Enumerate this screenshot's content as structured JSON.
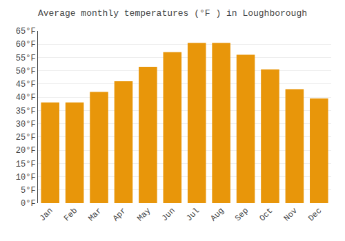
{
  "chart_data": {
    "type": "bar",
    "title": "Average monthly temperatures (°F ) in Loughborough",
    "categories": [
      "Jan",
      "Feb",
      "Mar",
      "Apr",
      "May",
      "Jun",
      "Jul",
      "Aug",
      "Sep",
      "Oct",
      "Nov",
      "Dec"
    ],
    "values": [
      38,
      38,
      42,
      46,
      51.5,
      57,
      60.5,
      60.5,
      56,
      50.5,
      43,
      39.5
    ],
    "color": "#E8960A",
    "ylim": [
      0,
      65
    ],
    "yticks": [
      {
        "value": 0,
        "label": "0°F"
      },
      {
        "value": 5,
        "label": "5°F"
      },
      {
        "value": 10,
        "label": "10°F"
      },
      {
        "value": 15,
        "label": "15°F"
      },
      {
        "value": 20,
        "label": "20°F"
      },
      {
        "value": 25,
        "label": "25°F"
      },
      {
        "value": 30,
        "label": "30°F"
      },
      {
        "value": 35,
        "label": "35°F"
      },
      {
        "value": 40,
        "label": "40°F"
      },
      {
        "value": 45,
        "label": "45°F"
      },
      {
        "value": 50,
        "label": "50°F"
      },
      {
        "value": 55,
        "label": "55°F"
      },
      {
        "value": 60,
        "label": "60°F"
      },
      {
        "value": 65,
        "label": "65°F"
      }
    ],
    "grid": true
  }
}
